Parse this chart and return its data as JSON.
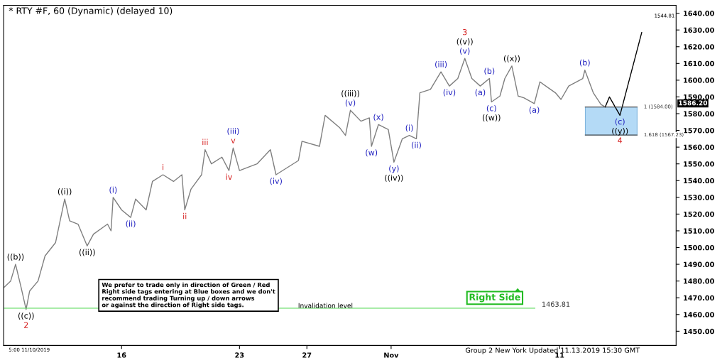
{
  "chart_data": {
    "type": "line",
    "title": "* RTY #F, 60 (Dynamic) (delayed 10)",
    "series": [
      {
        "color": "#7f7f7f",
        "x": [
          "2019-10-09T00:00",
          "2019-10-09T10:00",
          "2019-10-09T17:00",
          "2019-10-10T01:00",
          "2019-10-10T08:00",
          "2019-10-10T13:00",
          "2019-10-11T01:00",
          "2019-10-11T11:00",
          "2019-10-12T02:00",
          "2019-10-12T15:00",
          "2019-10-12T22:00",
          "2019-10-13T10:00",
          "2019-10-13T23:00",
          "2019-10-14T08:00",
          "2019-10-15T04:00",
          "2019-10-15T09:00",
          "2019-10-15T12:00",
          "2019-10-16T00:00",
          "2019-10-16T13:00",
          "2019-10-16T20:00",
          "2019-10-17T11:00",
          "2019-10-17T20:00",
          "2019-10-18T11:00",
          "2019-10-19T02:00",
          "2019-10-19T14:00",
          "2019-10-19T18:00",
          "2019-10-20T03:00",
          "2019-10-20T18:00",
          "2019-10-20T23:00",
          "2019-10-21T08:00",
          "2019-10-21T23:00",
          "2019-10-22T09:00",
          "2019-10-22T15:00",
          "2019-10-23T00:00",
          "2019-10-24T01:00",
          "2019-10-24T20:00",
          "2019-10-25T04:00",
          "2019-10-26T12:00",
          "2019-10-26T17:00",
          "2019-10-27T18:00",
          "2019-10-28T02:00",
          "2019-10-28T23:00",
          "2019-10-29T07:00",
          "2019-10-29T14:00",
          "2019-10-30T05:00",
          "2019-10-30T17:00",
          "2019-10-30T20:00",
          "2019-10-31T06:00",
          "2019-10-31T20:00",
          "2019-11-01T04:00",
          "2019-11-01T16:00",
          "2019-11-02T02:00",
          "2019-11-02T12:00",
          "2019-11-02T17:00",
          "2019-11-03T08:00",
          "2019-11-03T23:00",
          "2019-11-04T11:00",
          "2019-11-04T23:00",
          "2019-11-05T09:00",
          "2019-11-05T19:00",
          "2019-11-06T07:00",
          "2019-11-06T20:00",
          "2019-11-06T23:00",
          "2019-11-07T11:00",
          "2019-11-07T18:00",
          "2019-11-08T04:00",
          "2019-11-08T13:00",
          "2019-11-08T21:00",
          "2019-11-09T12:00",
          "2019-11-09T20:00",
          "2019-11-10T18:00",
          "2019-11-11T02:00",
          "2019-11-11T13:00",
          "2019-11-12T09:00",
          "2019-11-12T12:00",
          "2019-11-13T00:00",
          "2019-11-13T11:00",
          "2019-11-13T17:00"
        ],
        "values": [
          1476,
          1480,
          1490,
          1476,
          1463,
          1474,
          1480,
          1495,
          1503,
          1529,
          1516,
          1514,
          1501,
          1508,
          1514,
          1510,
          1530,
          1522.5,
          1518,
          1529,
          1522.5,
          1539.5,
          1543.5,
          1539.5,
          1543.5,
          1522.5,
          1535,
          1543.5,
          1558.5,
          1550,
          1554,
          1546,
          1559.5,
          1546,
          1550,
          1558.5,
          1543.5,
          1552,
          1563.5,
          1560.5,
          1579,
          1571.5,
          1567,
          1582,
          1575.5,
          1577.5,
          1560.5,
          1573.5,
          1570.5,
          1551,
          1565,
          1567,
          1565,
          1592.5,
          1594.5,
          1605,
          1596.5,
          1601,
          1613,
          1601,
          1596.5,
          1601,
          1587,
          1590.5,
          1601,
          1608.5,
          1590.5,
          1589.5,
          1586,
          1599,
          1592.5,
          1588.5,
          1596.5,
          1601,
          1606,
          1592.5,
          1585.5,
          1584
        ]
      },
      {
        "type": "line",
        "color": "#000000",
        "x": [
          "2019-11-13T17:00",
          "2019-11-13T23:00",
          "2019-11-14T14:00",
          "2019-11-15T21:00"
        ],
        "values": [
          1584,
          1590,
          1579,
          1628.5
        ]
      }
    ],
    "xlim": [
      "2019-10-09T00:00",
      "2019-11-17T22:00"
    ],
    "xticks": [
      {
        "value": "2019-10-16",
        "label": "16"
      },
      {
        "value": "2019-10-23",
        "label": "23"
      },
      {
        "value": "2019-10-27",
        "label": "27"
      },
      {
        "value": "2019-11-01",
        "label": "Nov"
      },
      {
        "value": "2019-11-11",
        "label": "11"
      }
    ],
    "ylim": [
      1441.5,
      1644.7
    ],
    "yticks": [
      {
        "value": 1450,
        "label": "1450.00"
      },
      {
        "value": 1460,
        "label": "1460.00"
      },
      {
        "value": 1470,
        "label": "1470.00"
      },
      {
        "value": 1480,
        "label": "1480.00"
      },
      {
        "value": 1490,
        "label": "1490.00"
      },
      {
        "value": 1500,
        "label": "1500.00"
      },
      {
        "value": 1510,
        "label": "1510.00"
      },
      {
        "value": 1520,
        "label": "1520.00"
      },
      {
        "value": 1530,
        "label": "1530.00"
      },
      {
        "value": 1540,
        "label": "1540.00"
      },
      {
        "value": 1550,
        "label": "1550.00"
      },
      {
        "value": 1560,
        "label": "1560.00"
      },
      {
        "value": 1570,
        "label": "1570.00"
      },
      {
        "value": 1580,
        "label": "1580.00"
      },
      {
        "value": 1590,
        "label": "1590.00"
      },
      {
        "value": 1600,
        "label": "1600.00"
      },
      {
        "value": 1610,
        "label": "1610.00"
      },
      {
        "value": 1620,
        "label": "1620.00"
      },
      {
        "value": 1630,
        "label": "1630.00"
      },
      {
        "value": 1640,
        "label": "1640.00"
      }
    ],
    "grid": false,
    "ref_lines": [
      {
        "axis": "y",
        "value": 1463.81,
        "label": "1463.81",
        "color": "#66dd66"
      },
      {
        "axis": "y",
        "value": 1584,
        "label": "1 (1584.00)",
        "color": "#555555"
      },
      {
        "axis": "y",
        "value": 1567.23,
        "label": "1.618 (1567.23)",
        "color": "#555555"
      }
    ],
    "bands": [
      {
        "axis": "y",
        "from": 1567.23,
        "to": 1584,
        "color": "#a8d4f5"
      }
    ],
    "annotations": [
      "We prefer to trade only in direction of Green / Red\nRight side tags entering at Blue boxes and we don't\nrecommend trading Turning up / down arrows\nor against the direction of Right side tags.",
      "Invalidation level",
      "Right Side",
      "Group 2 New York Updated 11.13.2019 15:30 GMT",
      "1586.20",
      "1544.81",
      "5:00 11/10/2019",
      {
        "text": "((b))",
        "x": "2019-10-09T17:00",
        "y": 1490
      },
      {
        "text": "((c))",
        "x": "2019-10-10T08:00",
        "y": 1463
      },
      {
        "text": "2",
        "x": "2019-10-10T08:00",
        "y": 1463
      },
      {
        "text": "((i))",
        "x": "2019-10-12T15:00",
        "y": 1529
      },
      {
        "text": "((ii))",
        "x": "2019-10-13T23:00",
        "y": 1501
      },
      {
        "text": "(i)",
        "x": "2019-10-15T12:00",
        "y": 1530
      },
      {
        "text": "(ii)",
        "x": "2019-10-16T13:00",
        "y": 1518
      },
      {
        "text": "i",
        "x": "2019-10-18T11:00",
        "y": 1543.5
      },
      {
        "text": "ii",
        "x": "2019-10-19T18:00",
        "y": 1522.5
      },
      {
        "text": "iii",
        "x": "2019-10-20T23:00",
        "y": 1558.5
      },
      {
        "text": "iv",
        "x": "2019-10-22T09:00",
        "y": 1546
      },
      {
        "text": "v",
        "x": "2019-10-22T15:00",
        "y": 1559.5
      },
      {
        "text": "(iii)",
        "x": "2019-10-22T15:00",
        "y": 1559.5
      },
      {
        "text": "(iv)",
        "x": "2019-10-25T04:00",
        "y": 1543.5
      },
      {
        "text": "(v)",
        "x": "2019-10-29T14:00",
        "y": 1582
      },
      {
        "text": "((iii))",
        "x": "2019-10-29T14:00",
        "y": 1582
      },
      {
        "text": "(w)",
        "x": "2019-10-30T20:00",
        "y": 1560.5
      },
      {
        "text": "(x)",
        "x": "2019-10-31T06:00",
        "y": 1573.5
      },
      {
        "text": "(y)",
        "x": "2019-11-01T04:00",
        "y": 1551
      },
      {
        "text": "((iv))",
        "x": "2019-11-01T04:00",
        "y": 1551
      },
      {
        "text": "(i)",
        "x": "2019-11-02T02:00",
        "y": 1567
      },
      {
        "text": "(ii)",
        "x": "2019-11-02T12:00",
        "y": 1565
      },
      {
        "text": "(iii)",
        "x": "2019-11-03T23:00",
        "y": 1605
      },
      {
        "text": "(iv)",
        "x": "2019-11-04T11:00",
        "y": 1596.5
      },
      {
        "text": "(v)",
        "x": "2019-11-05T09:00",
        "y": 1613
      },
      {
        "text": "((v))",
        "x": "2019-11-05T09:00",
        "y": 1613
      },
      {
        "text": "3",
        "x": "2019-11-05T09:00",
        "y": 1613
      },
      {
        "text": "(a)",
        "x": "2019-11-06T07:00",
        "y": 1596.5
      },
      {
        "text": "(b)",
        "x": "2019-11-06T20:00",
        "y": 1601
      },
      {
        "text": "(c)",
        "x": "2019-11-06T23:00",
        "y": 1587
      },
      {
        "text": "((w))",
        "x": "2019-11-06T23:00",
        "y": 1587
      },
      {
        "text": "((x))",
        "x": "2019-11-08T04:00",
        "y": 1608.5
      },
      {
        "text": "(a)",
        "x": "2019-11-09T12:00",
        "y": 1586
      },
      {
        "text": "(b)",
        "x": "2019-11-12T12:00",
        "y": 1606
      },
      {
        "text": "(c)",
        "x": "2019-11-14T14:00",
        "y": 1579
      },
      {
        "text": "((y))",
        "x": "2019-11-14T14:00",
        "y": 1579
      },
      {
        "text": "4",
        "x": "2019-11-14T14:00",
        "y": 1579
      }
    ]
  }
}
